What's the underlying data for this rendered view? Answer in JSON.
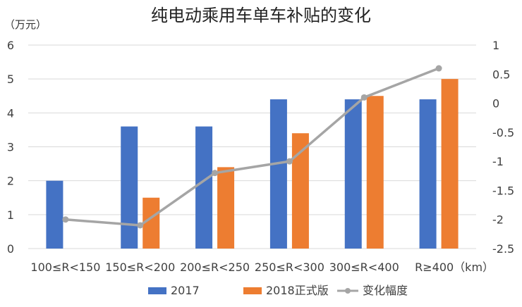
{
  "chart_data": {
    "type": "bar",
    "title": "纯电动乘用车单车补贴的变化",
    "y_unit": "（万元）",
    "x_unit": "（km）",
    "categories": [
      "100≤R<150",
      "150≤R<200",
      "200≤R<250",
      "250≤R<300",
      "300≤R<400",
      "R≥400"
    ],
    "series": [
      {
        "name": "2017",
        "type": "bar",
        "axis": "left",
        "color": "#4472C4",
        "values": [
          2.0,
          3.6,
          3.6,
          4.4,
          4.4,
          4.4
        ]
      },
      {
        "name": "2018正式版",
        "type": "bar",
        "axis": "left",
        "color": "#ED7D31",
        "values": [
          null,
          1.5,
          2.4,
          3.4,
          4.5,
          5.0
        ]
      },
      {
        "name": "变化幅度",
        "type": "line",
        "axis": "right",
        "color": "#A5A5A5",
        "values": [
          -2.0,
          -2.1,
          -1.2,
          -1.0,
          0.1,
          0.6
        ]
      }
    ],
    "y_left": {
      "min": 0,
      "max": 6,
      "ticks": [
        "0",
        "1",
        "2",
        "3",
        "4",
        "5",
        "6"
      ]
    },
    "y_right": {
      "min": -2.5,
      "max": 1,
      "ticks": [
        "-2.5",
        "-2",
        "-1.5",
        "-1",
        "-0.5",
        "0",
        "0.5",
        "1"
      ]
    },
    "grid": true,
    "legend_position": "bottom"
  }
}
